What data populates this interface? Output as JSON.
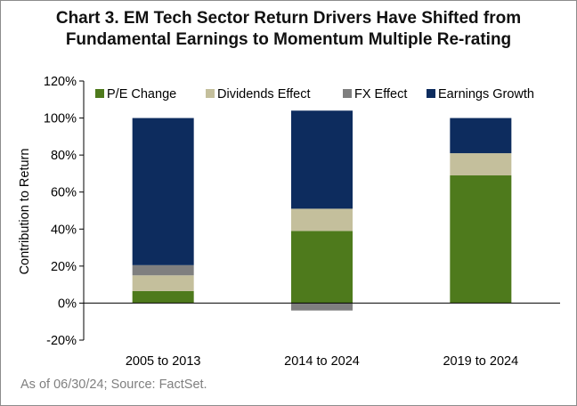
{
  "chart_data": {
    "type": "bar",
    "stacked": true,
    "title": [
      "Chart 3. EM Tech Sector Return Drivers Have Shifted from",
      "Fundamental Earnings to Momentum Multiple Re-rating"
    ],
    "xlabel": "",
    "ylabel": "Contribution to Return",
    "ylim": [
      -20,
      120
    ],
    "yticks": [
      -20,
      0,
      20,
      40,
      60,
      80,
      100,
      120
    ],
    "ytick_suffix": "%",
    "grid": false,
    "legend_position": "top",
    "categories": [
      "2005 to 2013",
      "2014 to 2024",
      "2019 to 2024"
    ],
    "series": [
      {
        "name": "P/E Change",
        "color": "#4e7a1c",
        "values": [
          6.5,
          39,
          69
        ]
      },
      {
        "name": "Dividends Effect",
        "color": "#c4bf9c",
        "values": [
          8.5,
          12,
          12
        ]
      },
      {
        "name": "FX Effect",
        "color": "#7f7f7f",
        "values": [
          5.5,
          -4,
          0
        ]
      },
      {
        "name": "Earnings Growth",
        "color": "#0d2c5e",
        "values": [
          79.5,
          53,
          19
        ]
      }
    ]
  },
  "footer": {
    "source": "As of 06/30/24; Source: FactSet."
  }
}
